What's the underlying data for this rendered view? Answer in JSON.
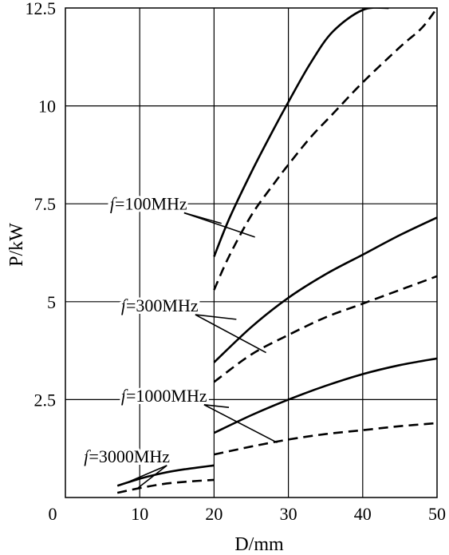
{
  "chart_data": {
    "type": "line",
    "title": "",
    "xlabel": "D/mm",
    "ylabel": "P/kW",
    "xlim": [
      0,
      50
    ],
    "ylim": [
      0,
      12.5
    ],
    "x_ticks": [
      0,
      10,
      20,
      30,
      40,
      50
    ],
    "x_tick_labels": [
      "0",
      "10",
      "20",
      "30",
      "40",
      "50"
    ],
    "y_ticks": [
      2.5,
      5,
      7.5,
      10,
      12.5
    ],
    "y_tick_labels": [
      "2.5",
      "5",
      "7.5",
      "10",
      "12.5"
    ],
    "grid": true,
    "legend": "none",
    "series": [
      {
        "group": "f=100MHz",
        "style": "solid",
        "x": [
          20,
          22,
          25,
          28,
          30,
          33,
          36,
          40,
          43.5
        ],
        "y": [
          6.15,
          7.1,
          8.3,
          9.4,
          10.1,
          11.1,
          11.9,
          12.45,
          12.5
        ]
      },
      {
        "group": "f=100MHz",
        "style": "dashed",
        "x": [
          20,
          22,
          25,
          28,
          30,
          33,
          36,
          40,
          45,
          48,
          50
        ],
        "y": [
          5.3,
          6.15,
          7.2,
          8.0,
          8.5,
          9.2,
          9.8,
          10.6,
          11.5,
          12.0,
          12.5
        ]
      },
      {
        "group": "f=300MHz",
        "style": "solid",
        "x": [
          20,
          25,
          30,
          35,
          40,
          45,
          50
        ],
        "y": [
          3.45,
          4.35,
          5.1,
          5.7,
          6.2,
          6.7,
          7.15
        ]
      },
      {
        "group": "f=300MHz",
        "style": "dashed",
        "x": [
          20,
          25,
          30,
          35,
          40,
          45,
          50
        ],
        "y": [
          2.95,
          3.65,
          4.15,
          4.6,
          4.95,
          5.3,
          5.65
        ]
      },
      {
        "group": "f=1000MHz",
        "style": "solid",
        "x": [
          20,
          25,
          30,
          35,
          40,
          45,
          50
        ],
        "y": [
          1.65,
          2.1,
          2.5,
          2.85,
          3.15,
          3.38,
          3.55
        ]
      },
      {
        "group": "f=1000MHz",
        "style": "dashed",
        "x": [
          20,
          25,
          30,
          35,
          40,
          45,
          50
        ],
        "y": [
          1.1,
          1.3,
          1.48,
          1.62,
          1.72,
          1.82,
          1.9
        ]
      },
      {
        "group": "f=3000MHz",
        "style": "solid",
        "x": [
          7,
          10,
          13,
          16,
          20
        ],
        "y": [
          0.3,
          0.48,
          0.62,
          0.72,
          0.82
        ]
      },
      {
        "group": "f=3000MHz",
        "style": "dashed",
        "x": [
          7,
          10,
          13,
          16,
          20
        ],
        "y": [
          0.12,
          0.24,
          0.34,
          0.4,
          0.45
        ]
      }
    ],
    "annotations": [
      {
        "f": "f",
        "text": "=100MHz",
        "at": [
          6.0,
          7.35
        ],
        "leader_to": [
          [
            21.0,
            7.0
          ],
          [
            25.5,
            6.65
          ]
        ]
      },
      {
        "f": "f",
        "text": "=300MHz",
        "at": [
          7.5,
          4.75
        ],
        "leader_to": [
          [
            23.0,
            4.55
          ],
          [
            27.0,
            3.7
          ]
        ]
      },
      {
        "f": "f",
        "text": "=1000MHz",
        "at": [
          7.5,
          2.45
        ],
        "leader_to": [
          [
            22.0,
            2.3
          ],
          [
            28.5,
            1.4
          ]
        ]
      },
      {
        "f": "f",
        "text": "=3000MHz",
        "at": [
          2.5,
          0.9
        ],
        "leader_to": [
          [
            8.5,
            0.4
          ],
          [
            9.8,
            0.25
          ]
        ]
      }
    ]
  }
}
